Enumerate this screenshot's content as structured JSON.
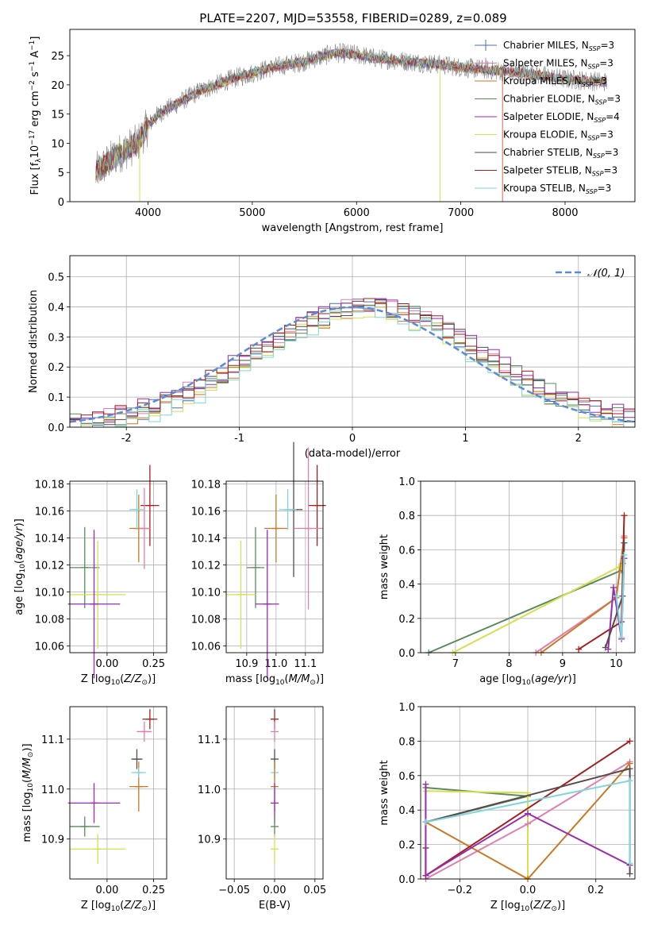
{
  "title": "PLATE=2207, MJD=53558, FIBERID=0289, z=0.089",
  "colors": {
    "chabrier_miles": "#4a6fb5",
    "salpeter_miles": "#e07fae",
    "kroupa_miles": "#cc7722",
    "chabrier_elodie": "#5b8a5e",
    "salpeter_elodie": "#9a2ab0",
    "kroupa_elodie": "#d4e04f",
    "chabrier_stelib": "#5a4a4a",
    "salpeter_stelib": "#a51f1f",
    "kroupa_stelib": "#7fd6dc",
    "grid": "#b0b0b0",
    "normal": "#5b8bd8"
  },
  "chart_data": [
    {
      "id": "spectrum",
      "type": "line",
      "xlabel": "wavelength [Angstrom, rest frame]",
      "ylabel": "Flux [f_λ 10^-17 erg cm^-2 s^-1 A^-1]",
      "xlim": [
        3250,
        8670
      ],
      "ylim": [
        0,
        29.5
      ],
      "xticks": [
        4000,
        5000,
        6000,
        7000,
        8000
      ],
      "yticks": [
        0,
        5,
        10,
        15,
        20,
        25
      ],
      "grid": false,
      "legend_position": "top-right",
      "data_x_range": [
        3500,
        8400
      ],
      "continuum": [
        [
          3500,
          5
        ],
        [
          3700,
          8
        ],
        [
          3900,
          10
        ],
        [
          4000,
          13
        ],
        [
          4100,
          15
        ],
        [
          4300,
          17
        ],
        [
          4500,
          19
        ],
        [
          4800,
          21
        ],
        [
          5000,
          22
        ],
        [
          5200,
          23
        ],
        [
          5500,
          24
        ],
        [
          5800,
          25.5
        ],
        [
          6000,
          25.2
        ],
        [
          6200,
          24.5
        ],
        [
          6500,
          24
        ],
        [
          6800,
          23.5
        ],
        [
          7000,
          23
        ],
        [
          7300,
          22.5
        ],
        [
          7600,
          22
        ],
        [
          8000,
          21
        ],
        [
          8400,
          20.5
        ]
      ],
      "artifacts": [
        {
          "x": 6800,
          "y": 0
        },
        {
          "x": 7400,
          "y": 0
        },
        {
          "x": 3920,
          "y": 0
        }
      ],
      "legend": [
        {
          "key": "chabrier_miles",
          "label": "Chabrier MILES, N",
          "sub": "SSP",
          "tail": "=3"
        },
        {
          "key": "salpeter_miles",
          "label": "Salpeter MILES, N",
          "sub": "SSP",
          "tail": "=3"
        },
        {
          "key": "kroupa_miles",
          "label": "Kroupa MILES, N",
          "sub": "SSP",
          "tail": "=3"
        },
        {
          "key": "chabrier_elodie",
          "label": "Chabrier ELODIE, N",
          "sub": "SSP",
          "tail": "=3"
        },
        {
          "key": "salpeter_elodie",
          "label": "Salpeter ELODIE, N",
          "sub": "SSP",
          "tail": "=4"
        },
        {
          "key": "kroupa_elodie",
          "label": "Kroupa ELODIE, N",
          "sub": "SSP",
          "tail": "=3"
        },
        {
          "key": "chabrier_stelib",
          "label": "Chabrier STELIB, N",
          "sub": "SSP",
          "tail": "=3"
        },
        {
          "key": "salpeter_stelib",
          "label": "Salpeter STELIB, N",
          "sub": "SSP",
          "tail": "=3"
        },
        {
          "key": "kroupa_stelib",
          "label": "Kroupa STELIB, N",
          "sub": "SSP",
          "tail": "=3"
        }
      ]
    },
    {
      "id": "residuals",
      "type": "histogram",
      "xlabel": "(data-model)/error",
      "ylabel": "Normed distribution",
      "xlim": [
        -2.5,
        2.5
      ],
      "ylim": [
        0,
        0.57
      ],
      "xticks": [
        -2,
        -1,
        0,
        1,
        2
      ],
      "yticks": [
        0.0,
        0.1,
        0.2,
        0.3,
        0.4,
        0.5
      ],
      "grid": true,
      "legend_position": "top-right",
      "legend_label": "N(0,1)",
      "bin_width": 0.1,
      "bin_start": -2.5,
      "base_profile": [
        0.02,
        0.025,
        0.03,
        0.035,
        0.04,
        0.05,
        0.055,
        0.06,
        0.07,
        0.08,
        0.09,
        0.105,
        0.12,
        0.135,
        0.15,
        0.17,
        0.19,
        0.205,
        0.22,
        0.24,
        0.255,
        0.27,
        0.29,
        0.31,
        0.33,
        0.345,
        0.36,
        0.37,
        0.375,
        0.38,
        0.38,
        0.385,
        0.39,
        0.395,
        0.4,
        0.41,
        0.42,
        0.43,
        0.435,
        0.44,
        0.44,
        0.435,
        0.43,
        0.42,
        0.41,
        0.395,
        0.38,
        0.36,
        0.345,
        0.325,
        0.3,
        0.28,
        0.26,
        0.24,
        0.22,
        0.2,
        0.18,
        0.165,
        0.15,
        0.135,
        0.12,
        0.105,
        0.095,
        0.085,
        0.075,
        0.065,
        0.06,
        0.05,
        0.045,
        0.04,
        0.035,
        0.03,
        0.028,
        0.026,
        0.024,
        0.022,
        0.02,
        0.02,
        0.02,
        0.02,
        0.02,
        0.02,
        0.02,
        0.02,
        0.02,
        0.02,
        0.02,
        0.02,
        0.02,
        0.02,
        0.02,
        0.02,
        0.02,
        0.02,
        0.02,
        0.02,
        0.02,
        0.02,
        0.02,
        0.02
      ],
      "series_offsets": {
        "chabrier_miles": 0.0,
        "salpeter_miles": 0.01,
        "kroupa_miles": -0.01,
        "chabrier_elodie": 0.005,
        "salpeter_elodie": 0.015,
        "kroupa_elodie": -0.015,
        "chabrier_stelib": 0.0,
        "salpeter_stelib": 0.01,
        "kroupa_stelib": -0.02
      }
    },
    {
      "id": "age_vs_Z",
      "type": "errorbar",
      "xlabel": "Z [log10(Z/Zsun)]",
      "ylabel": "age [log10(age/yr)]",
      "xlim": [
        -0.2,
        0.32
      ],
      "ylim": [
        10.055,
        10.182
      ],
      "xticks": [
        0.0,
        0.25
      ],
      "xticklabels": [
        "0.00",
        "0.25"
      ],
      "yticks": [
        10.06,
        10.08,
        10.1,
        10.12,
        10.14,
        10.16,
        10.18
      ],
      "grid": true,
      "points": [
        {
          "key": "chabrier_elodie",
          "x": -0.12,
          "xerr": 0.08,
          "y": 10.118,
          "yerr": 0.03
        },
        {
          "key": "kroupa_elodie",
          "x": -0.05,
          "xerr": 0.15,
          "y": 10.098,
          "yerr": 0.04
        },
        {
          "key": "salpeter_elodie",
          "x": -0.07,
          "xerr": 0.14,
          "y": 10.091,
          "yerr": 0.055
        },
        {
          "key": "kroupa_miles",
          "x": 0.17,
          "xerr": 0.05,
          "y": 10.147,
          "yerr": 0.025
        },
        {
          "key": "kroupa_stelib",
          "x": 0.16,
          "xerr": 0.04,
          "y": 10.161,
          "yerr": 0.015
        },
        {
          "key": "salpeter_stelib",
          "x": 0.23,
          "xerr": 0.05,
          "y": 10.164,
          "yerr": 0.03
        },
        {
          "key": "salpeter_miles",
          "x": 0.2,
          "xerr": 0.03,
          "y": 10.147,
          "yerr": 0.03
        }
      ]
    },
    {
      "id": "age_vs_mass",
      "type": "errorbar",
      "xlabel": "mass [log10(M/Msun)]",
      "ylabel": "",
      "xlim": [
        10.83,
        11.16
      ],
      "ylim": [
        10.055,
        10.182
      ],
      "xticks": [
        10.9,
        11.0,
        11.1
      ],
      "xticklabels": [
        "10.9",
        "11.0",
        "11.1"
      ],
      "yticks": [
        10.06,
        10.08,
        10.1,
        10.12,
        10.14,
        10.16,
        10.18
      ],
      "grid": true,
      "points": [
        {
          "key": "chabrier_elodie",
          "x": 10.93,
          "xerr": 0.03,
          "y": 10.118,
          "yerr": 0.03
        },
        {
          "key": "kroupa_elodie",
          "x": 10.88,
          "xerr": 0.05,
          "y": 10.098,
          "yerr": 0.04
        },
        {
          "key": "salpeter_elodie",
          "x": 10.97,
          "xerr": 0.04,
          "y": 10.091,
          "yerr": 0.055
        },
        {
          "key": "kroupa_miles",
          "x": 11.0,
          "xerr": 0.04,
          "y": 10.147,
          "yerr": 0.025
        },
        {
          "key": "chabrier_stelib",
          "x": 11.06,
          "xerr": 0.03,
          "y": 10.161,
          "yerr": 0.05
        },
        {
          "key": "kroupa_stelib",
          "x": 11.04,
          "xerr": 0.03,
          "y": 10.161,
          "yerr": 0.015
        },
        {
          "key": "salpeter_stelib",
          "x": 11.14,
          "xerr": 0.03,
          "y": 10.164,
          "yerr": 0.03
        },
        {
          "key": "salpeter_miles",
          "x": 11.11,
          "xerr": 0.05,
          "y": 10.147,
          "yerr": 0.06
        }
      ]
    },
    {
      "id": "weight_vs_age",
      "type": "line",
      "xlabel": "age  [log10(age/yr)]",
      "ylabel": "mass weight",
      "xlim": [
        6.35,
        10.35
      ],
      "ylim": [
        0,
        1.0
      ],
      "xticks": [
        7,
        8,
        9,
        10
      ],
      "xticklabels": [
        "7",
        "8",
        "9",
        "10"
      ],
      "yticks": [
        0.0,
        0.2,
        0.4,
        0.6,
        0.8,
        1.0
      ],
      "grid": true,
      "series": [
        {
          "key": "chabrier_elodie",
          "points": [
            [
              6.5,
              0.0
            ],
            [
              10.1,
              0.48
            ],
            [
              10.12,
              0.52
            ]
          ]
        },
        {
          "key": "kroupa_elodie",
          "points": [
            [
              6.95,
              0.0
            ],
            [
              10.05,
              0.5
            ],
            [
              10.1,
              0.5
            ]
          ]
        },
        {
          "key": "salpeter_miles",
          "points": [
            [
              8.5,
              0.0
            ],
            [
              10.0,
              0.32
            ],
            [
              10.15,
              0.68
            ]
          ]
        },
        {
          "key": "kroupa_miles",
          "points": [
            [
              8.6,
              0.0
            ],
            [
              10.0,
              0.32
            ],
            [
              10.15,
              0.67
            ]
          ]
        },
        {
          "key": "salpeter_stelib",
          "points": [
            [
              9.3,
              0.02
            ],
            [
              10.1,
              0.18
            ],
            [
              10.15,
              0.8
            ]
          ]
        },
        {
          "key": "salpeter_elodie",
          "points": [
            [
              9.85,
              0.02
            ],
            [
              9.95,
              0.38
            ],
            [
              10.1,
              0.08
            ],
            [
              10.15,
              0.55
            ]
          ]
        },
        {
          "key": "chabrier_stelib",
          "points": [
            [
              9.8,
              0.03
            ],
            [
              10.12,
              0.33
            ],
            [
              10.15,
              0.64
            ]
          ]
        },
        {
          "key": "kroupa_stelib",
          "points": [
            [
              10.0,
              0.33
            ],
            [
              10.1,
              0.09
            ],
            [
              10.15,
              0.57
            ]
          ]
        }
      ]
    },
    {
      "id": "mass_vs_Z",
      "type": "errorbar",
      "xlabel": "Z [log10(Z/Zsun)]",
      "ylabel": "mass [log10(M/Msun)]",
      "xlim": [
        -0.2,
        0.32
      ],
      "ylim": [
        10.82,
        11.165
      ],
      "xticks": [
        0.0,
        0.25
      ],
      "xticklabels": [
        "0.00",
        "0.25"
      ],
      "yticks": [
        10.9,
        11.0,
        11.1
      ],
      "grid": true,
      "points": [
        {
          "key": "chabrier_elodie",
          "x": -0.12,
          "xerr": 0.08,
          "y": 10.925,
          "yerr": 0.02
        },
        {
          "key": "kroupa_elodie",
          "x": -0.05,
          "xerr": 0.15,
          "y": 10.88,
          "yerr": 0.03
        },
        {
          "key": "salpeter_elodie",
          "x": -0.07,
          "xerr": 0.14,
          "y": 10.972,
          "yerr": 0.04
        },
        {
          "key": "kroupa_miles",
          "x": 0.17,
          "xerr": 0.05,
          "y": 11.005,
          "yerr": 0.05
        },
        {
          "key": "kroupa_stelib",
          "x": 0.17,
          "xerr": 0.04,
          "y": 11.033,
          "yerr": 0.01
        },
        {
          "key": "chabrier_stelib",
          "x": 0.16,
          "xerr": 0.03,
          "y": 11.06,
          "yerr": 0.02
        },
        {
          "key": "salpeter_miles",
          "x": 0.2,
          "xerr": 0.04,
          "y": 11.115,
          "yerr": 0.02
        },
        {
          "key": "salpeter_stelib",
          "x": 0.23,
          "xerr": 0.04,
          "y": 11.14,
          "yerr": 0.02
        }
      ]
    },
    {
      "id": "mass_vs_ebv",
      "type": "errorbar",
      "xlabel": "E(B-V)",
      "ylabel": "",
      "xlim": [
        -0.06,
        0.06
      ],
      "ylim": [
        10.82,
        11.165
      ],
      "xticks": [
        -0.05,
        0.0,
        0.05
      ],
      "xticklabels": [
        "−0.05",
        "0.00",
        "0.05"
      ],
      "yticks": [
        10.9,
        11.0,
        11.1
      ],
      "grid": true,
      "points": [
        {
          "key": "salpeter_stelib",
          "x": 0.0,
          "xerr": 0.0,
          "y": 11.14,
          "yerr": 0.02
        },
        {
          "key": "salpeter_miles",
          "x": 0.0,
          "xerr": 0.0,
          "y": 11.115,
          "yerr": 0.02
        },
        {
          "key": "chabrier_stelib",
          "x": 0.0,
          "xerr": 0.0,
          "y": 11.06,
          "yerr": 0.02
        },
        {
          "key": "kroupa_stelib",
          "x": 0.0,
          "xerr": 0.0,
          "y": 11.033,
          "yerr": 0.01
        },
        {
          "key": "kroupa_miles",
          "x": 0.0,
          "xerr": 0.0,
          "y": 11.005,
          "yerr": 0.05
        },
        {
          "key": "salpeter_elodie",
          "x": 0.0,
          "xerr": 0.0,
          "y": 10.972,
          "yerr": 0.04
        },
        {
          "key": "chabrier_elodie",
          "x": 0.0,
          "xerr": 0.0,
          "y": 10.925,
          "yerr": 0.02
        },
        {
          "key": "kroupa_elodie",
          "x": 0.0,
          "xerr": 0.0,
          "y": 10.88,
          "yerr": 0.03
        }
      ]
    },
    {
      "id": "weight_vs_Z",
      "type": "line",
      "xlabel": "Z [log10(Z/Zsun)]",
      "ylabel": "mass weight",
      "xlim": [
        -0.315,
        0.315
      ],
      "ylim": [
        0,
        1.0
      ],
      "xticks": [
        -0.2,
        0.0,
        0.2
      ],
      "xticklabels": [
        "−0.2",
        "0.0",
        "0.2"
      ],
      "yticks": [
        0.0,
        0.2,
        0.4,
        0.6,
        0.8,
        1.0
      ],
      "grid": true,
      "series": [
        {
          "key": "chabrier_elodie",
          "points": [
            [
              -0.3,
              0.53
            ],
            [
              0.0,
              0.48
            ],
            [
              -0.3,
              0.33
            ]
          ]
        },
        {
          "key": "kroupa_elodie",
          "points": [
            [
              -0.3,
              0.51
            ],
            [
              0.0,
              0.5
            ],
            [
              0.0,
              0.0
            ]
          ]
        },
        {
          "key": "salpeter_miles",
          "points": [
            [
              -0.3,
              0.0
            ],
            [
              0.0,
              0.32
            ],
            [
              0.3,
              0.68
            ]
          ]
        },
        {
          "key": "kroupa_miles",
          "points": [
            [
              -0.3,
              0.33
            ],
            [
              0.0,
              0.0
            ],
            [
              0.3,
              0.67
            ]
          ]
        },
        {
          "key": "salpeter_stelib",
          "points": [
            [
              -0.3,
              0.18
            ],
            [
              -0.3,
              0.02
            ],
            [
              0.3,
              0.8
            ]
          ]
        },
        {
          "key": "salpeter_elodie",
          "points": [
            [
              -0.3,
              0.55
            ],
            [
              -0.3,
              0.02
            ],
            [
              0.0,
              0.38
            ],
            [
              0.3,
              0.08
            ]
          ]
        },
        {
          "key": "chabrier_stelib",
          "points": [
            [
              -0.3,
              0.33
            ],
            [
              0.3,
              0.64
            ],
            [
              0.3,
              0.03
            ]
          ]
        },
        {
          "key": "kroupa_stelib",
          "points": [
            [
              -0.3,
              0.33
            ],
            [
              0.3,
              0.57
            ],
            [
              0.3,
              0.09
            ]
          ]
        }
      ]
    }
  ]
}
